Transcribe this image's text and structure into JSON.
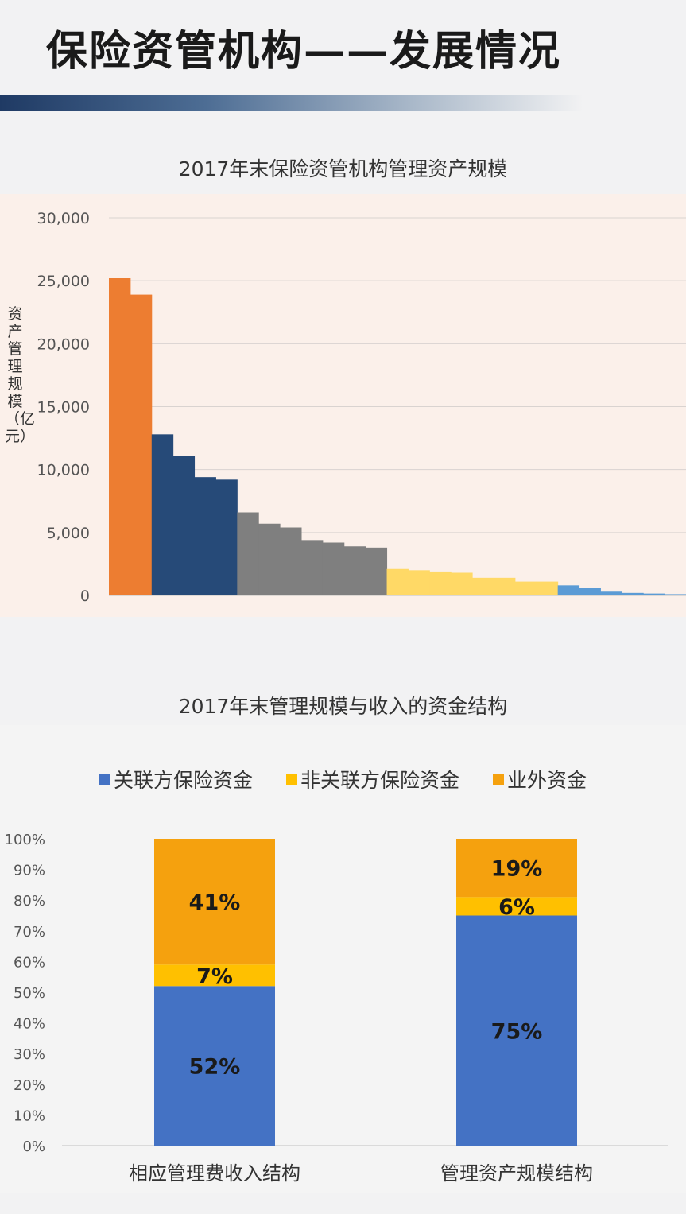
{
  "header": {
    "title": "保险资管机构——发展情况"
  },
  "colors": {
    "orange": "#ed7d31",
    "navy": "#264a78",
    "gray": "#7f7f7f",
    "yellow": "#ffd966",
    "blue": "#5b9bd5",
    "seg_blue": "#4472c4",
    "seg_yellow": "#ffc000",
    "seg_orange": "#f5a10e"
  },
  "chart_data": [
    {
      "type": "bar",
      "title": "2017年末保险资管机构管理资产规模",
      "ylabel": "资产管理规模（亿元）",
      "ylim": [
        0,
        30000
      ],
      "yticks": [
        "0",
        "5,000",
        "10,000",
        "15,000",
        "20,000",
        "25,000",
        "30,000"
      ],
      "grid": true,
      "values": [
        25200,
        23900,
        12800,
        11100,
        9400,
        9200,
        6600,
        5700,
        5400,
        4400,
        4200,
        3900,
        3800,
        2100,
        2000,
        1900,
        1800,
        1400,
        1400,
        1100,
        1100,
        800,
        600,
        300,
        200,
        150,
        100
      ],
      "groups": [
        "orange",
        "orange",
        "navy",
        "navy",
        "navy",
        "navy",
        "gray",
        "gray",
        "gray",
        "gray",
        "gray",
        "gray",
        "gray",
        "yellow",
        "yellow",
        "yellow",
        "yellow",
        "yellow",
        "yellow",
        "yellow",
        "yellow",
        "blue",
        "blue",
        "blue",
        "blue",
        "blue",
        "blue"
      ]
    },
    {
      "type": "bar",
      "stacked": true,
      "title": "2017年末管理规模与收入的资金结构",
      "ylim": [
        0,
        100
      ],
      "yticks": [
        "0%",
        "10%",
        "20%",
        "30%",
        "40%",
        "50%",
        "60%",
        "70%",
        "80%",
        "90%",
        "100%"
      ],
      "legend_position": "top",
      "categories": [
        "相应管理费收入结构",
        "管理资产规模结构"
      ],
      "series": [
        {
          "name": "关联方保险资金",
          "values": [
            52,
            75
          ],
          "labels": [
            "52%",
            "75%"
          ]
        },
        {
          "name": "非关联方保险资金",
          "values": [
            7,
            6
          ],
          "labels": [
            "7%",
            "6%"
          ]
        },
        {
          "name": "业外资金",
          "values": [
            41,
            19
          ],
          "labels": [
            "41%",
            "19%"
          ]
        }
      ]
    }
  ]
}
